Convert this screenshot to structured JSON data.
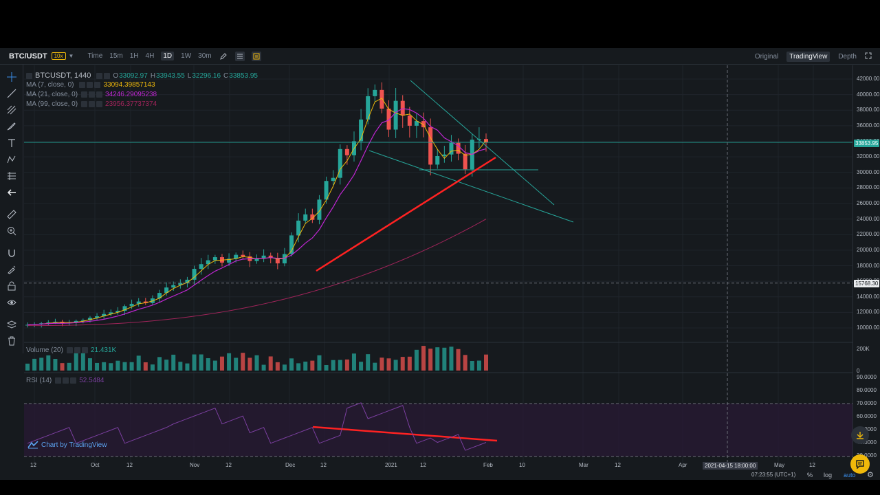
{
  "toolbar": {
    "symbol": "BTC/USDT",
    "leverage": "10x",
    "timeframes": [
      "Time",
      "15m",
      "1H",
      "4H",
      "1D",
      "1W",
      "30m"
    ],
    "active_timeframe": "1D",
    "views": [
      "Original",
      "TradingView",
      "Depth"
    ],
    "active_view": "TradingView"
  },
  "legend": {
    "title": "BTCUSDT, 1440",
    "o_label": "O",
    "o": "33092.97",
    "h_label": "H",
    "h": "33943.55",
    "l_label": "L",
    "l": "32296.16",
    "c_label": "C",
    "c": "33853.95",
    "ma7_label": "MA (7, close, 0)",
    "ma7": "33094.39857143",
    "ma21_label": "MA (21, close, 0)",
    "ma21": "34246.29095238",
    "ma99_label": "MA (99, close, 0)",
    "ma99": "23956.37737374",
    "volume_label": "Volume (20)",
    "volume": "21.431K",
    "rsi_label": "RSI (14)",
    "rsi": "52.5484"
  },
  "price_axis": [
    "42000.00",
    "40000.00",
    "38000.00",
    "36000.00",
    "34000.00",
    "32000.00",
    "30000.00",
    "28000.00",
    "26000.00",
    "24000.00",
    "22000.00",
    "20000.00",
    "18000.00",
    "16000.00",
    "14000.00",
    "12000.00",
    "10000.00"
  ],
  "price_tags": {
    "last": "33853.95",
    "line": "15768.30"
  },
  "volume_axis": [
    "200K",
    "0"
  ],
  "rsi_axis": [
    "90.0000",
    "80.0000",
    "70.0000",
    "60.0000",
    "50.0000",
    "40.0000",
    "30.0000"
  ],
  "time_axis": [
    "12",
    "Oct",
    "12",
    "Nov",
    "12",
    "Dec",
    "12",
    "2021",
    "12",
    "Feb",
    "10",
    "Mar",
    "12",
    "Apr",
    "May",
    "12"
  ],
  "crosshair_time": "2021-04-15 18:00:00",
  "bottom": {
    "clock": "07:23:55 (UTC+1)",
    "percent": "%",
    "log": "log",
    "auto": "auto"
  },
  "watermark": "Chart by TradingView",
  "colors": {
    "up": "#26a69a",
    "down": "#ef5350",
    "ma7": "#f0b90b",
    "ma21": "#c026d3",
    "ma99": "#a0245a",
    "trend": "#ff2222",
    "teal_line": "#26a69a"
  },
  "chart_data": {
    "type": "candlestick",
    "close_trend": [
      10400,
      10500,
      10600,
      10700,
      10800,
      10600,
      10700,
      10900,
      11000,
      11300,
      11500,
      11800,
      12000,
      12200,
      12800,
      13100,
      13400,
      13200,
      13800,
      14500,
      15200,
      15500,
      15800,
      16200,
      17600,
      18200,
      18700,
      19100,
      18400,
      18900,
      19400,
      19200,
      18600,
      18900,
      19300,
      19000,
      18300,
      19500,
      21900,
      23800,
      24600,
      23900,
      26500,
      28900,
      29300,
      33000,
      32200,
      34000,
      36800,
      39800,
      40600,
      38200,
      35500,
      39200,
      37300,
      36000,
      36600,
      35800,
      31000,
      32100,
      32300,
      33800,
      32400,
      30400,
      34200,
      34300,
      33853
    ]
  }
}
